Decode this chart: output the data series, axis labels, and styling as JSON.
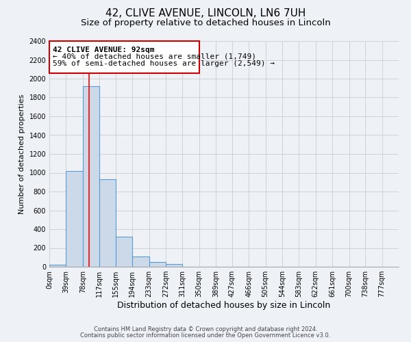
{
  "title_line1": "42, CLIVE AVENUE, LINCOLN, LN6 7UH",
  "title_line2": "Size of property relative to detached houses in Lincoln",
  "xlabel": "Distribution of detached houses by size in Lincoln",
  "ylabel": "Number of detached properties",
  "bar_left_edges": [
    0,
    39,
    78,
    117,
    155,
    194,
    233,
    272,
    311,
    350,
    389,
    427,
    466,
    505,
    544,
    583,
    622,
    661,
    700,
    738
  ],
  "bar_widths": [
    39,
    39,
    39,
    38,
    39,
    39,
    39,
    39,
    39,
    39,
    38,
    39,
    39,
    39,
    39,
    39,
    39,
    39,
    38,
    39
  ],
  "bar_heights": [
    20,
    1020,
    1920,
    930,
    320,
    110,
    50,
    30,
    0,
    0,
    0,
    0,
    0,
    0,
    0,
    0,
    0,
    0,
    0,
    0
  ],
  "tick_labels": [
    "0sqm",
    "39sqm",
    "78sqm",
    "117sqm",
    "155sqm",
    "194sqm",
    "233sqm",
    "272sqm",
    "311sqm",
    "350sqm",
    "389sqm",
    "427sqm",
    "466sqm",
    "505sqm",
    "544sqm",
    "583sqm",
    "622sqm",
    "661sqm",
    "700sqm",
    "738sqm",
    "777sqm"
  ],
  "bar_color": "#ccd9e8",
  "bar_edge_color": "#5b9bd5",
  "bar_edge_width": 0.8,
  "red_line_x": 92,
  "xlim": [
    0,
    816
  ],
  "ylim": [
    0,
    2400
  ],
  "yticks": [
    0,
    200,
    400,
    600,
    800,
    1000,
    1200,
    1400,
    1600,
    1800,
    2000,
    2200,
    2400
  ],
  "annotation_title": "42 CLIVE AVENUE: 92sqm",
  "annotation_line1": "← 40% of detached houses are smaller (1,749)",
  "annotation_line2": "59% of semi-detached houses are larger (2,549) →",
  "grid_color": "#cccccc",
  "background_color": "#eef2f7",
  "plot_bg_color": "#eef2f7",
  "footer_line1": "Contains HM Land Registry data © Crown copyright and database right 2024.",
  "footer_line2": "Contains public sector information licensed under the Open Government Licence v3.0.",
  "title_fontsize": 11,
  "subtitle_fontsize": 9.5,
  "tick_fontsize": 7,
  "ylabel_fontsize": 8,
  "xlabel_fontsize": 9,
  "footer_fontsize": 6,
  "annot_fontsize": 8
}
